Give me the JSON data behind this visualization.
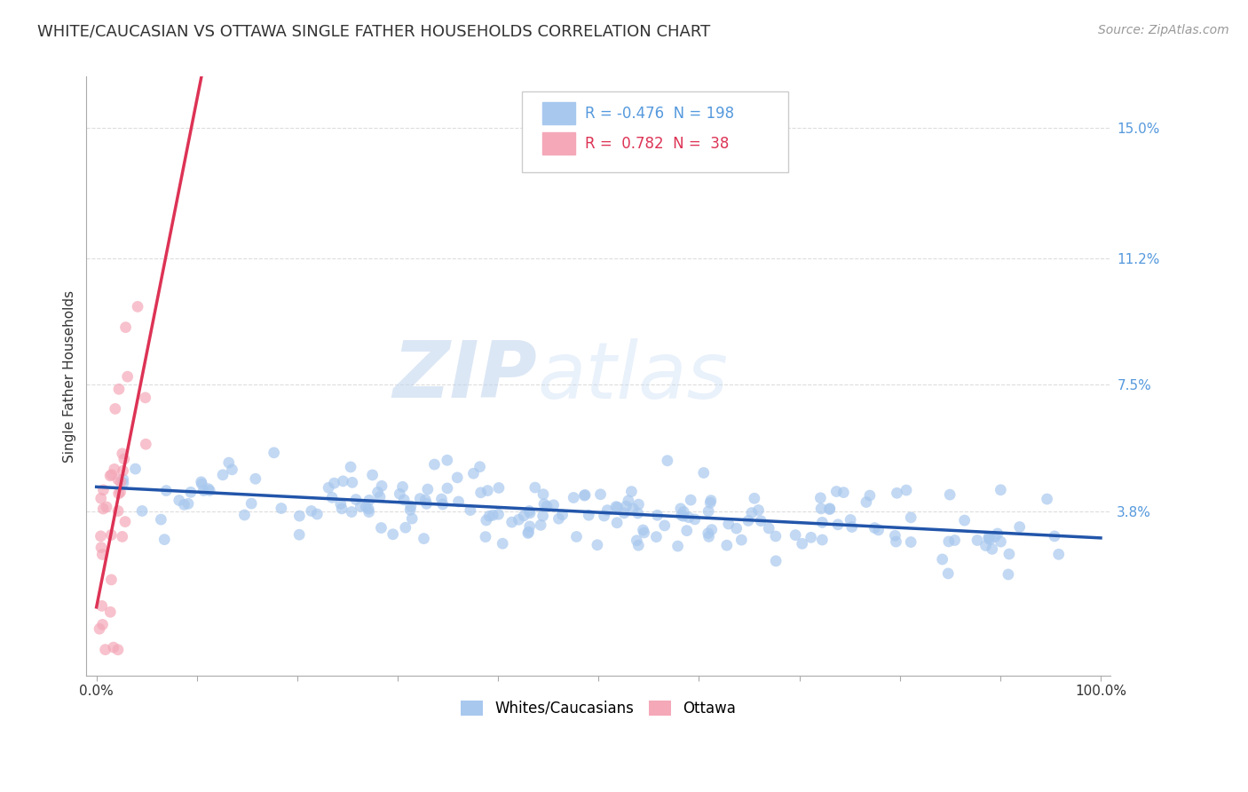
{
  "title": "WHITE/CAUCASIAN VS OTTAWA SINGLE FATHER HOUSEHOLDS CORRELATION CHART",
  "source": "Source: ZipAtlas.com",
  "ylabel": "Single Father Households",
  "ytick_values": [
    0.038,
    0.075,
    0.112,
    0.15
  ],
  "ytick_labels": [
    "3.8%",
    "7.5%",
    "11.2%",
    "15.0%"
  ],
  "xlim": [
    -0.01,
    1.01
  ],
  "ylim": [
    -0.01,
    0.165
  ],
  "blue_R": -0.476,
  "blue_N": 198,
  "pink_R": 0.782,
  "pink_N": 38,
  "blue_color": "#A8C8EE",
  "pink_color": "#F4A8B8",
  "blue_line_color": "#2255AA",
  "pink_line_color": "#DD3355",
  "blue_alpha": 0.7,
  "pink_alpha": 0.7,
  "marker_size": 85,
  "legend_label_blue": "Whites/Caucasians",
  "legend_label_pink": "Ottawa",
  "watermark_zip": "ZIP",
  "watermark_atlas": "atlas",
  "grid_color": "#DDDDDD",
  "background_color": "#FFFFFF",
  "title_fontsize": 13,
  "source_fontsize": 10,
  "legend_fontsize": 12,
  "axis_label_fontsize": 11,
  "tick_fontsize": 11,
  "ytick_color": "#5599DD",
  "xtick_color": "#333333"
}
